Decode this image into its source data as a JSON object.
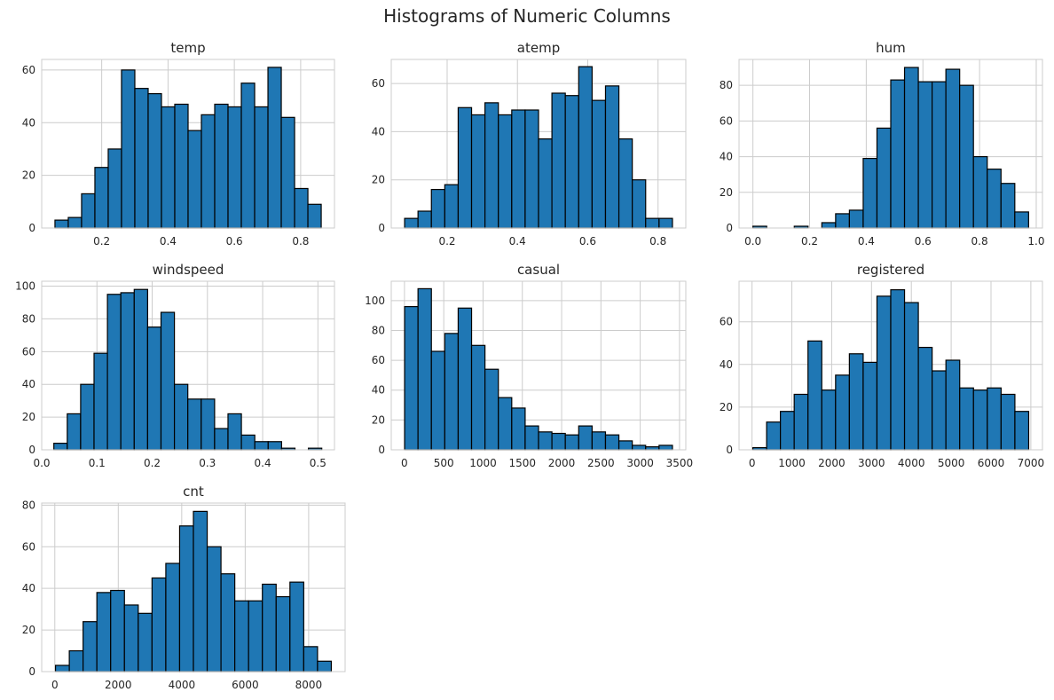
{
  "figure": {
    "title": "Histograms of Numeric Columns"
  },
  "colors": {
    "bar": "#1f77b4",
    "edge": "#000000",
    "grid": "#cccccc",
    "text": "#262626"
  },
  "chart_data": [
    {
      "type": "bar",
      "title": "temp",
      "grid": true,
      "bin_range": [
        0.059,
        0.862
      ],
      "counts": [
        3,
        4,
        13,
        23,
        30,
        60,
        53,
        51,
        46,
        47,
        37,
        43,
        47,
        46,
        55,
        46,
        61,
        42,
        15,
        9
      ],
      "xlim": [
        0.019,
        0.902
      ],
      "ylim": [
        0,
        64
      ],
      "xticks": [
        0.2,
        0.4,
        0.6,
        0.8
      ],
      "xtick_labels": [
        "0.2",
        "0.4",
        "0.6",
        "0.8"
      ],
      "yticks": [
        0,
        20,
        40,
        60
      ],
      "ytick_labels": [
        "0",
        "20",
        "40",
        "60"
      ]
    },
    {
      "type": "bar",
      "title": "atemp",
      "grid": true,
      "bin_range": [
        0.079,
        0.841
      ],
      "counts": [
        4,
        7,
        16,
        18,
        50,
        47,
        52,
        47,
        49,
        49,
        37,
        56,
        55,
        67,
        53,
        59,
        37,
        20,
        4,
        4
      ],
      "xlim": [
        0.041,
        0.879
      ],
      "ylim": [
        0,
        70
      ],
      "xticks": [
        0.2,
        0.4,
        0.6,
        0.8
      ],
      "xtick_labels": [
        "0.2",
        "0.4",
        "0.6",
        "0.8"
      ],
      "yticks": [
        0,
        20,
        40,
        60
      ],
      "ytick_labels": [
        "0",
        "20",
        "40",
        "60"
      ]
    },
    {
      "type": "bar",
      "title": "hum",
      "grid": true,
      "bin_range": [
        0.0,
        0.973
      ],
      "counts": [
        1,
        0,
        0,
        1,
        0,
        3,
        8,
        10,
        39,
        56,
        83,
        90,
        82,
        82,
        89,
        80,
        40,
        33,
        25,
        9
      ],
      "xlim": [
        -0.049,
        1.022
      ],
      "ylim": [
        0,
        94.5
      ],
      "xticks": [
        0,
        0.2,
        0.4,
        0.6,
        0.8,
        1.0
      ],
      "xtick_labels": [
        "0.0",
        "0.2",
        "0.4",
        "0.6",
        "0.8",
        "1.0"
      ],
      "yticks": [
        0,
        20,
        40,
        60,
        80
      ],
      "ytick_labels": [
        "0",
        "20",
        "40",
        "60",
        "80"
      ]
    },
    {
      "type": "bar",
      "title": "windspeed",
      "grid": true,
      "bin_range": [
        0.022,
        0.507
      ],
      "counts": [
        4,
        22,
        40,
        59,
        95,
        96,
        98,
        75,
        84,
        40,
        31,
        31,
        13,
        22,
        9,
        5,
        5,
        1,
        0,
        1
      ],
      "xlim": [
        0.0,
        0.53
      ],
      "ylim": [
        0,
        103
      ],
      "xticks": [
        0.0,
        0.1,
        0.2,
        0.3,
        0.4,
        0.5
      ],
      "xtick_labels": [
        "0.0",
        "0.1",
        "0.2",
        "0.3",
        "0.4",
        "0.5"
      ],
      "yticks": [
        0,
        20,
        40,
        60,
        80,
        100
      ],
      "ytick_labels": [
        "0",
        "20",
        "40",
        "60",
        "80",
        "100"
      ]
    },
    {
      "type": "bar",
      "title": "casual",
      "grid": true,
      "bin_range": [
        2,
        3410
      ],
      "counts": [
        96,
        108,
        66,
        78,
        95,
        70,
        54,
        35,
        28,
        16,
        12,
        11,
        10,
        16,
        12,
        10,
        6,
        3,
        2,
        3
      ],
      "xlim": [
        -168,
        3580
      ],
      "ylim": [
        0,
        113
      ],
      "xticks": [
        0,
        500,
        1000,
        1500,
        2000,
        2500,
        3000,
        3500
      ],
      "xtick_labels": [
        "0",
        "500",
        "1000",
        "1500",
        "2000",
        "2500",
        "3000",
        "3500"
      ],
      "yticks": [
        0,
        20,
        40,
        60,
        80,
        100
      ],
      "ytick_labels": [
        "0",
        "20",
        "40",
        "60",
        "80",
        "100"
      ]
    },
    {
      "type": "bar",
      "title": "registered",
      "grid": true,
      "bin_range": [
        20,
        6946
      ],
      "counts": [
        1,
        13,
        18,
        26,
        51,
        28,
        35,
        45,
        41,
        72,
        75,
        69,
        48,
        37,
        42,
        29,
        28,
        29,
        26,
        18
      ],
      "xlim": [
        -326,
        7292
      ],
      "ylim": [
        0,
        79
      ],
      "xticks": [
        0,
        1000,
        2000,
        3000,
        4000,
        5000,
        6000,
        7000
      ],
      "xtick_labels": [
        "0",
        "1000",
        "2000",
        "3000",
        "4000",
        "5000",
        "6000",
        "7000"
      ],
      "yticks": [
        0,
        20,
        40,
        60
      ],
      "ytick_labels": [
        "0",
        "20",
        "40",
        "60"
      ]
    },
    {
      "type": "bar",
      "title": "cnt",
      "grid": true,
      "bin_range": [
        22,
        8714
      ],
      "counts": [
        3,
        10,
        24,
        38,
        39,
        32,
        28,
        45,
        52,
        70,
        77,
        60,
        47,
        34,
        34,
        42,
        36,
        43,
        12,
        5
      ],
      "xlim": [
        -413,
        9149
      ],
      "ylim": [
        0,
        81
      ],
      "xticks": [
        0,
        2000,
        4000,
        6000,
        8000
      ],
      "xtick_labels": [
        "0",
        "2000",
        "4000",
        "6000",
        "8000"
      ],
      "yticks": [
        0,
        20,
        40,
        60,
        80
      ],
      "ytick_labels": [
        "0",
        "20",
        "40",
        "60",
        "80"
      ]
    }
  ]
}
